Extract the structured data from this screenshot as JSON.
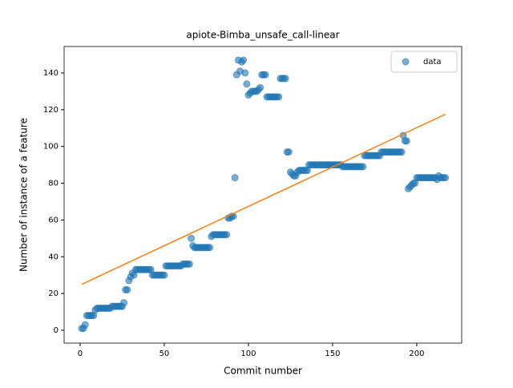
{
  "chart_data": {
    "type": "scatter",
    "title": "apiote-Bimba_unsafe_call-linear",
    "xlabel": "Commit number",
    "ylabel": "Number of instance of a feature",
    "xlim": [
      -9.5,
      226.7
    ],
    "ylim": [
      -7,
      154.4
    ],
    "xticks": [
      0,
      50,
      100,
      150,
      200
    ],
    "yticks": [
      0,
      20,
      40,
      60,
      80,
      100,
      120,
      140
    ],
    "legend": "upper right",
    "series": [
      {
        "name": "data",
        "color": "#1f77b4",
        "x": [
          1,
          2,
          3,
          4,
          5,
          6,
          7,
          8,
          9,
          10,
          11,
          12,
          13,
          14,
          15,
          16,
          17,
          18,
          19,
          20,
          21,
          22,
          23,
          24,
          25,
          26,
          27,
          28,
          29,
          30,
          31,
          32,
          33,
          34,
          35,
          36,
          37,
          38,
          39,
          40,
          41,
          42,
          43,
          44,
          45,
          46,
          47,
          48,
          49,
          50,
          51,
          52,
          53,
          54,
          55,
          56,
          57,
          58,
          59,
          60,
          61,
          62,
          63,
          64,
          65,
          66,
          67,
          68,
          69,
          70,
          71,
          72,
          73,
          74,
          75,
          76,
          77,
          78,
          79,
          80,
          81,
          82,
          83,
          84,
          85,
          86,
          87,
          88,
          89,
          90,
          91,
          92,
          93,
          94,
          95,
          96,
          97,
          98,
          99,
          100,
          101,
          102,
          103,
          104,
          105,
          106,
          107,
          108,
          109,
          110,
          111,
          112,
          113,
          114,
          115,
          116,
          117,
          118,
          119,
          120,
          121,
          122,
          123,
          124,
          125,
          126,
          127,
          128,
          129,
          130,
          131,
          132,
          133,
          134,
          135,
          136,
          137,
          138,
          139,
          140,
          141,
          142,
          143,
          144,
          145,
          146,
          147,
          148,
          149,
          150,
          151,
          152,
          153,
          154,
          155,
          156,
          157,
          158,
          159,
          160,
          161,
          162,
          163,
          164,
          165,
          166,
          167,
          168,
          169,
          170,
          171,
          172,
          173,
          174,
          175,
          176,
          177,
          178,
          179,
          180,
          181,
          182,
          183,
          184,
          185,
          186,
          187,
          188,
          189,
          190,
          191,
          192,
          193,
          194,
          195,
          196,
          197,
          198,
          199,
          200,
          201,
          202,
          203,
          204,
          205,
          206,
          207,
          208,
          209,
          210,
          211,
          212,
          213,
          214,
          215,
          216,
          217
        ],
        "values": [
          1,
          1,
          3,
          8,
          8,
          8,
          8,
          8,
          11,
          12,
          12,
          12,
          12,
          12,
          12,
          12,
          12,
          12,
          13,
          13,
          13,
          13,
          13,
          13,
          13,
          15,
          22,
          22,
          27,
          29,
          31,
          30,
          33,
          33,
          33,
          33,
          33,
          33,
          33,
          33,
          33,
          33,
          30,
          30,
          30,
          30,
          30,
          30,
          30,
          30,
          35,
          35,
          35,
          35,
          35,
          35,
          35,
          35,
          35,
          35,
          36,
          36,
          36,
          36,
          36,
          50,
          46,
          45,
          45,
          45,
          45,
          45,
          45,
          45,
          45,
          45,
          45,
          51,
          52,
          52,
          52,
          52,
          52,
          52,
          52,
          52,
          52,
          61,
          61,
          62,
          62,
          83,
          139,
          147,
          141,
          146,
          147,
          140,
          134,
          128,
          129,
          130,
          130,
          130,
          130,
          131,
          132,
          139,
          139,
          139,
          127,
          127,
          127,
          127,
          127,
          127,
          127,
          127,
          137,
          137,
          137,
          137,
          97,
          97,
          86,
          85,
          84,
          84,
          86,
          87,
          87,
          87,
          87,
          87,
          87,
          90,
          90,
          90,
          90,
          90,
          90,
          90,
          90,
          90,
          90,
          90,
          90,
          90,
          90,
          90,
          90,
          90,
          90,
          90,
          90,
          89,
          89,
          89,
          89,
          89,
          89,
          89,
          89,
          89,
          89,
          89,
          89,
          89,
          95,
          95,
          95,
          95,
          95,
          95,
          95,
          95,
          95,
          95,
          97,
          97,
          97,
          97,
          97,
          97,
          97,
          97,
          97,
          97,
          97,
          97,
          97,
          106,
          103,
          103,
          77,
          78,
          79,
          80,
          80,
          83,
          83,
          83,
          83,
          83,
          83,
          83,
          83,
          83,
          83,
          83,
          83,
          82,
          84,
          83,
          83,
          83,
          83
        ]
      }
    ],
    "fit": {
      "color": "#ff7f0e",
      "x": [
        1,
        217
      ],
      "values": [
        25,
        117.5
      ]
    }
  }
}
